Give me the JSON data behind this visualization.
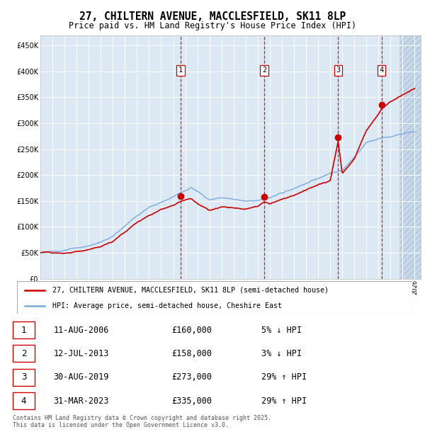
{
  "title": "27, CHILTERN AVENUE, MACCLESFIELD, SK11 8LP",
  "subtitle": "Price paid vs. HM Land Registry's House Price Index (HPI)",
  "ylim": [
    0,
    470000
  ],
  "yticks": [
    0,
    50000,
    100000,
    150000,
    200000,
    250000,
    300000,
    350000,
    400000,
    450000
  ],
  "xlim_start": 1995.0,
  "xlim_end": 2026.5,
  "background_color": "#ffffff",
  "plot_bg_color": "#dce9f5",
  "grid_color": "#ffffff",
  "red_line_color": "#cc0000",
  "blue_line_color": "#7aaadd",
  "vline_color": "#cc0000",
  "purchases": [
    {
      "date_year": 2006.61,
      "price": 160000,
      "label": "1"
    },
    {
      "date_year": 2013.54,
      "price": 158000,
      "label": "2"
    },
    {
      "date_year": 2019.66,
      "price": 273000,
      "label": "3"
    },
    {
      "date_year": 2023.25,
      "price": 335000,
      "label": "4"
    }
  ],
  "legend_entries": [
    {
      "label": "27, CHILTERN AVENUE, MACCLESFIELD, SK11 8LP (semi-detached house)",
      "color": "#cc0000"
    },
    {
      "label": "HPI: Average price, semi-detached house, Cheshire East",
      "color": "#7aaadd"
    }
  ],
  "table_rows": [
    {
      "num": "1",
      "date": "11-AUG-2006",
      "price": "£160,000",
      "pct": "5% ↓ HPI"
    },
    {
      "num": "2",
      "date": "12-JUL-2013",
      "price": "£158,000",
      "pct": "3% ↓ HPI"
    },
    {
      "num": "3",
      "date": "30-AUG-2019",
      "price": "£273,000",
      "pct": "29% ↑ HPI"
    },
    {
      "num": "4",
      "date": "31-MAR-2023",
      "price": "£335,000",
      "pct": "29% ↑ HPI"
    }
  ],
  "footnote": "Contains HM Land Registry data © Crown copyright and database right 2025.\nThis data is licensed under the Open Government Licence v3.0.",
  "future_start": 2024.75,
  "hpi_base": [
    [
      1995.0,
      50000
    ],
    [
      1996.0,
      52000
    ],
    [
      1997.0,
      55000
    ],
    [
      1998.0,
      58000
    ],
    [
      1999.0,
      62000
    ],
    [
      2000.0,
      70000
    ],
    [
      2001.0,
      80000
    ],
    [
      2002.0,
      100000
    ],
    [
      2003.0,
      120000
    ],
    [
      2004.0,
      137000
    ],
    [
      2005.0,
      148000
    ],
    [
      2006.0,
      158000
    ],
    [
      2007.0,
      172000
    ],
    [
      2007.5,
      178000
    ],
    [
      2008.0,
      170000
    ],
    [
      2009.0,
      154000
    ],
    [
      2010.0,
      160000
    ],
    [
      2011.0,
      158000
    ],
    [
      2012.0,
      155000
    ],
    [
      2013.0,
      157000
    ],
    [
      2014.0,
      162000
    ],
    [
      2015.0,
      170000
    ],
    [
      2016.0,
      178000
    ],
    [
      2017.0,
      188000
    ],
    [
      2018.0,
      198000
    ],
    [
      2019.0,
      207000
    ],
    [
      2020.0,
      210000
    ],
    [
      2021.0,
      235000
    ],
    [
      2022.0,
      265000
    ],
    [
      2023.0,
      272000
    ],
    [
      2024.0,
      275000
    ],
    [
      2025.0,
      280000
    ],
    [
      2026.0,
      283000
    ]
  ],
  "prop_base": [
    [
      1995.0,
      50000
    ],
    [
      1996.0,
      51500
    ],
    [
      1997.0,
      53000
    ],
    [
      1998.0,
      57000
    ],
    [
      1999.0,
      61000
    ],
    [
      2000.0,
      68000
    ],
    [
      2001.0,
      78000
    ],
    [
      2002.0,
      96000
    ],
    [
      2003.0,
      115000
    ],
    [
      2004.0,
      130000
    ],
    [
      2005.0,
      142000
    ],
    [
      2006.0,
      152000
    ],
    [
      2006.61,
      160000
    ],
    [
      2007.0,
      162000
    ],
    [
      2007.5,
      165000
    ],
    [
      2008.0,
      156000
    ],
    [
      2009.0,
      142000
    ],
    [
      2010.0,
      148000
    ],
    [
      2011.0,
      146000
    ],
    [
      2012.0,
      143000
    ],
    [
      2013.0,
      148000
    ],
    [
      2013.54,
      158000
    ],
    [
      2014.0,
      153000
    ],
    [
      2015.0,
      162000
    ],
    [
      2016.0,
      170000
    ],
    [
      2017.0,
      180000
    ],
    [
      2018.0,
      190000
    ],
    [
      2019.0,
      198000
    ],
    [
      2019.66,
      273000
    ],
    [
      2020.0,
      210000
    ],
    [
      2021.0,
      240000
    ],
    [
      2022.0,
      295000
    ],
    [
      2023.0,
      325000
    ],
    [
      2023.25,
      335000
    ],
    [
      2024.0,
      348000
    ],
    [
      2025.0,
      360000
    ],
    [
      2026.0,
      370000
    ]
  ]
}
